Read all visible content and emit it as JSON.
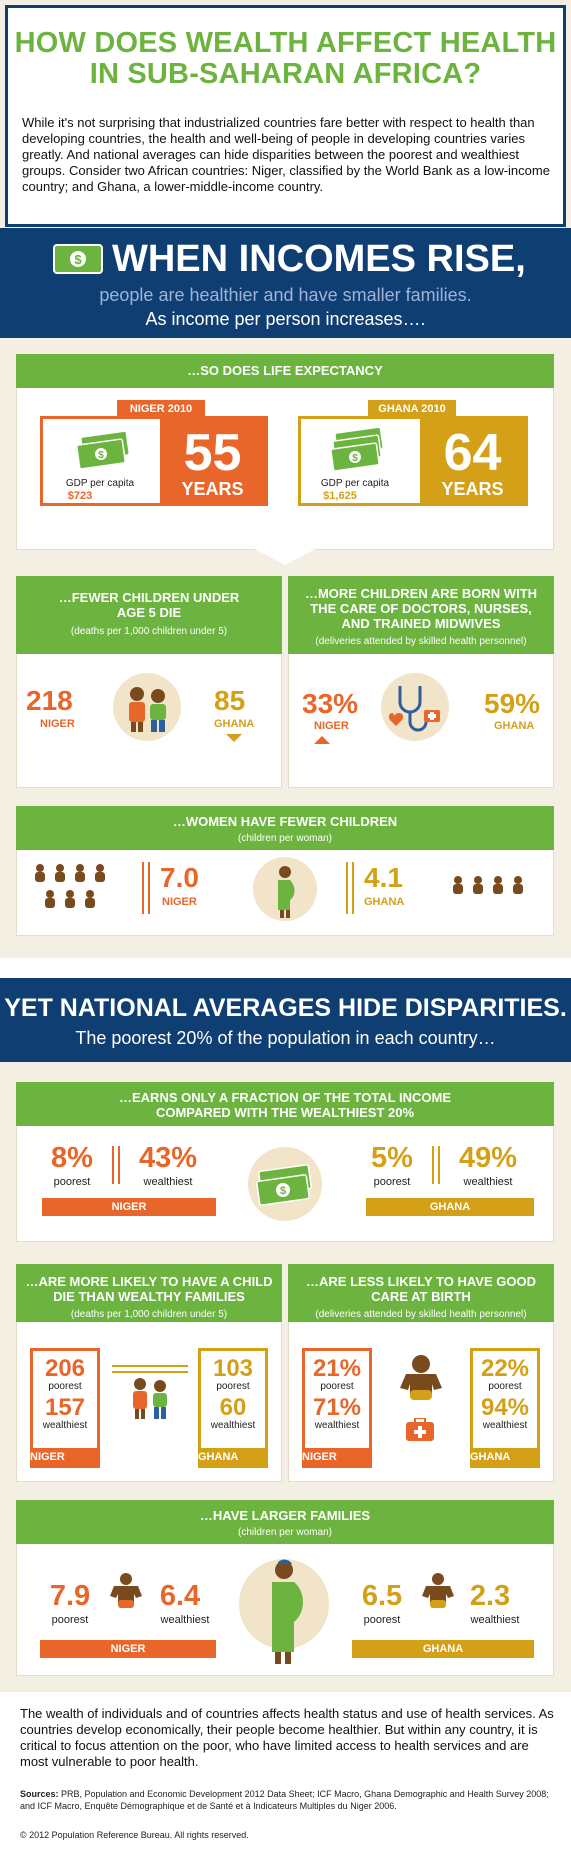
{
  "header": {
    "title_line1": "HOW DOES WEALTH AFFECT HEALTH",
    "title_line2": "IN SUB-SAHARAN AFRICA?",
    "intro": "While it's not surprising that industrialized countries fare better with respect to health than developing countries, the health and well-being of people in developing countries varies greatly. And national averages can hide disparities between the poorest and wealthiest groups. Consider two African countries: Niger, classified by the World Bank as a low-income country; and Ghana, a lower-middle-income country."
  },
  "section1": {
    "title": "WHEN INCOMES RISE,",
    "subtitle": "people are healthier and have smaller families.",
    "subtitle2": "As income per person increases….",
    "life_expectancy": {
      "heading": "…SO DOES LIFE EXPECTANCY",
      "niger": {
        "tag": "NIGER 2010",
        "gdp_label": "GDP per capita",
        "gdp_value": "$723",
        "years": "55",
        "years_label": "YEARS"
      },
      "ghana": {
        "tag": "GHANA 2010",
        "gdp_label": "GDP per capita",
        "gdp_value": "$1,625",
        "years": "64",
        "years_label": "YEARS"
      }
    },
    "child_deaths": {
      "heading": "…FEWER CHILDREN UNDER AGE 5 DIE",
      "sub": "(deaths per 1,000 children under 5)",
      "niger_value": "218",
      "niger_label": "NIGER",
      "ghana_value": "85",
      "ghana_label": "GHANA"
    },
    "skilled_care": {
      "heading": "…MORE CHILDREN ARE BORN WITH THE CARE OF DOCTORS, NURSES, AND TRAINED MIDWIVES",
      "sub": "(deliveries attended by skilled health personnel)",
      "niger_value": "33%",
      "niger_label": "NIGER",
      "ghana_value": "59%",
      "ghana_label": "GHANA"
    },
    "fertility": {
      "heading": "…WOMEN HAVE FEWER CHILDREN",
      "sub": "(children per woman)",
      "niger_value": "7.0",
      "niger_label": "NIGER",
      "ghana_value": "4.1",
      "ghana_label": "GHANA"
    }
  },
  "section2": {
    "title": "YET NATIONAL AVERAGES HIDE DISPARITIES.",
    "subtitle": "The poorest 20% of the population in each country…",
    "income": {
      "heading": "…EARNS ONLY A FRACTION OF THE TOTAL INCOME COMPARED WITH THE WEALTHIEST 20%",
      "niger_poorest": "8%",
      "niger_wealthiest": "43%",
      "ghana_poorest": "5%",
      "ghana_wealthiest": "49%",
      "poorest_label": "poorest",
      "wealthiest_label": "wealthiest",
      "niger_label": "NIGER",
      "ghana_label": "GHANA"
    },
    "child_death": {
      "heading": "…ARE MORE LIKELY TO HAVE A CHILD DIE THAN WEALTHY FAMILIES",
      "sub": "(deaths per 1,000 children under 5)",
      "niger_poorest": "206",
      "niger_wealthiest": "157",
      "ghana_poorest": "103",
      "ghana_wealthiest": "60",
      "poorest_label": "poorest",
      "wealthiest_label": "wealthiest",
      "niger_label": "NIGER",
      "ghana_label": "GHANA"
    },
    "care_at_birth": {
      "heading": "…ARE LESS LIKELY TO HAVE GOOD CARE AT BIRTH",
      "sub": "(deliveries attended by skilled health personnel)",
      "niger_poorest": "21%",
      "niger_wealthiest": "71%",
      "ghana_poorest": "22%",
      "ghana_wealthiest": "94%",
      "poorest_label": "poorest",
      "wealthiest_label": "wealthiest",
      "niger_label": "NIGER",
      "ghana_label": "GHANA"
    },
    "families": {
      "heading": "…HAVE LARGER FAMILIES",
      "sub": "(children per woman)",
      "niger_poorest": "7.9",
      "niger_wealthiest": "6.4",
      "ghana_poorest": "6.5",
      "ghana_wealthiest": "2.3",
      "poorest_label": "poorest",
      "wealthiest_label": "wealthiest",
      "niger_label": "NIGER",
      "ghana_label": "GHANA"
    }
  },
  "footer": {
    "closing": "The wealth of individuals and of countries affects health status and use of health services. As countries develop economically, their people become healthier. But within any country, it is critical to focus attention on the poor, who have limited access to health services and are most vulnerable to poor health.",
    "sources_label": "Sources:",
    "sources": " PRB, Population and Economic Development 2012 Data Sheet; ICF Macro, Ghana Demographic and Health Survey 2008; and ICF Macro, Enquête Démographique et de Santé et à Indicateurs Multiples du Niger 2006.",
    "copyright": "© 2012 Population Reference Bureau. All rights reserved."
  },
  "colors": {
    "green": "#6db33f",
    "orange": "#e8662a",
    "gold": "#d4a017",
    "navy": "#0f3e73",
    "beige": "#f4efe3"
  },
  "icons": [
    "money-icon",
    "children-icon",
    "stethoscope-icon",
    "baby-icon",
    "pregnant-woman-icon",
    "first-aid-kit-icon"
  ]
}
